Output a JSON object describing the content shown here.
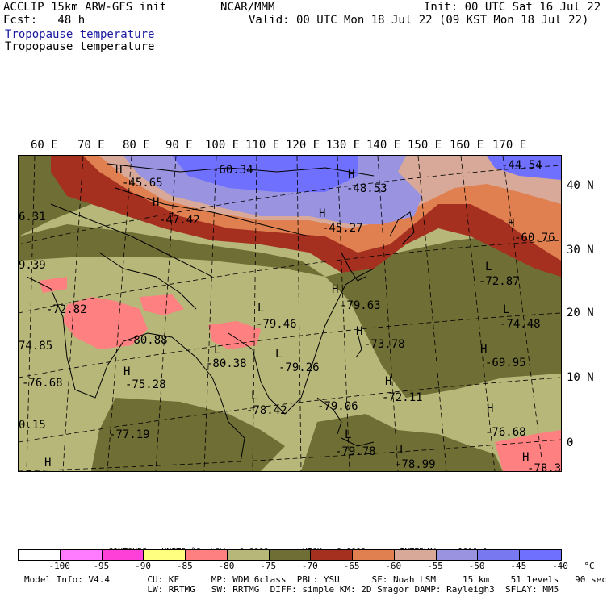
{
  "header": {
    "line1_left": "ACCLIP 15km ARW-GFS init",
    "line1_center": "NCAR/MMM",
    "line1_right": "Init: 00 UTC Sat 16 Jul 22",
    "line2_left": "Fcst:   48 h",
    "line2_right": "Valid: 00 UTC Mon 18 Jul 22 (09 KST Mon 18 Jul 22)",
    "title_blue": "Tropopause temperature",
    "title_black": "Tropopause temperature"
  },
  "longitude_labels": [
    "60 E",
    "70 E",
    "80 E",
    "90 E",
    "100 E",
    "110 E",
    "120 E",
    "130 E",
    "140 E",
    "150 E",
    "160 E",
    "170 E"
  ],
  "latitude_labels": [
    "40 N",
    "30 N",
    "20 N",
    "10 N",
    "0"
  ],
  "map_labels": [
    {
      "t": "H"
    },
    {
      "t": "-45.65"
    },
    {
      "t": "-60.34"
    },
    {
      "t": "H"
    },
    {
      "t": "-48.53"
    },
    {
      "t": "-44.54"
    },
    {
      "t": "H"
    },
    {
      "t": "-47.42"
    },
    {
      "t": "H"
    },
    {
      "t": "-45.27"
    },
    {
      "t": "H"
    },
    {
      "t": "-60.76"
    },
    {
      "t": "6.31"
    },
    {
      "t": "9.39"
    },
    {
      "t": "L"
    },
    {
      "t": "-72.87"
    },
    {
      "t": "-72.82"
    },
    {
      "t": "L"
    },
    {
      "t": "-79.46"
    },
    {
      "t": "H"
    },
    {
      "t": "-79.63"
    },
    {
      "t": "L"
    },
    {
      "t": "-74.48"
    },
    {
      "t": "-80.88"
    },
    {
      "t": "H"
    },
    {
      "t": "-73.78"
    },
    {
      "t": "74.85"
    },
    {
      "t": "L"
    },
    {
      "t": "-80.38"
    },
    {
      "t": "L"
    },
    {
      "t": "-79.26"
    },
    {
      "t": "H"
    },
    {
      "t": "-69.95"
    },
    {
      "t": "H"
    },
    {
      "t": "-76.68"
    },
    {
      "t": "-75.28"
    },
    {
      "t": "H"
    },
    {
      "t": "-72.11"
    },
    {
      "t": "L"
    },
    {
      "t": "-78.42"
    },
    {
      "t": "-79.06"
    },
    {
      "t": "0.15"
    },
    {
      "t": "-77.19"
    },
    {
      "t": "H"
    },
    {
      "t": "-76.68"
    },
    {
      "t": "L"
    },
    {
      "t": "-79.78"
    },
    {
      "t": "L"
    },
    {
      "t": "-78.99"
    },
    {
      "t": "H"
    },
    {
      "t": "-78.3"
    },
    {
      "t": "H"
    }
  ],
  "contours_line": "CONTOURS:  UNITS=°C  LOW=  0.0000       HIGH=  0.0000       INTERVAL=   1000.0",
  "colorbar": {
    "colors": [
      "#ffffff",
      "#ff7bff",
      "#ff40d8",
      "#ffff80",
      "#ff8080",
      "#b7b77a",
      "#6e6e35",
      "#a53020",
      "#e08050",
      "#d8a898",
      "#9a94e0",
      "#7878f0",
      "#7070ff"
    ],
    "tick_labels": [
      "-100",
      "-95",
      "-90",
      "-85",
      "-80",
      "-75",
      "-70",
      "-65",
      "-60",
      "-55",
      "-50",
      "-45",
      "-40",
      "°C"
    ]
  },
  "footer": {
    "line1": "Model Info: V4.4       CU: KF      MP: WDM 6class  PBL: YSU      SF: Noah LSM     15 km    51 levels   90 sec",
    "line2": "                       LW: RRTMG   SW: RRTMG  DIFF: simple KM: 2D Smagor DAMP: Rayleigh3  SFLAY: MM5"
  },
  "field_colors": {
    "olive_light": "#b7b77a",
    "olive_dark": "#6e6e35",
    "pink": "#ff8080",
    "dark_red": "#a53020",
    "orange": "#e08050",
    "light_pink": "#d8a898",
    "lavender": "#9a94e0",
    "blue": "#7070ff"
  }
}
